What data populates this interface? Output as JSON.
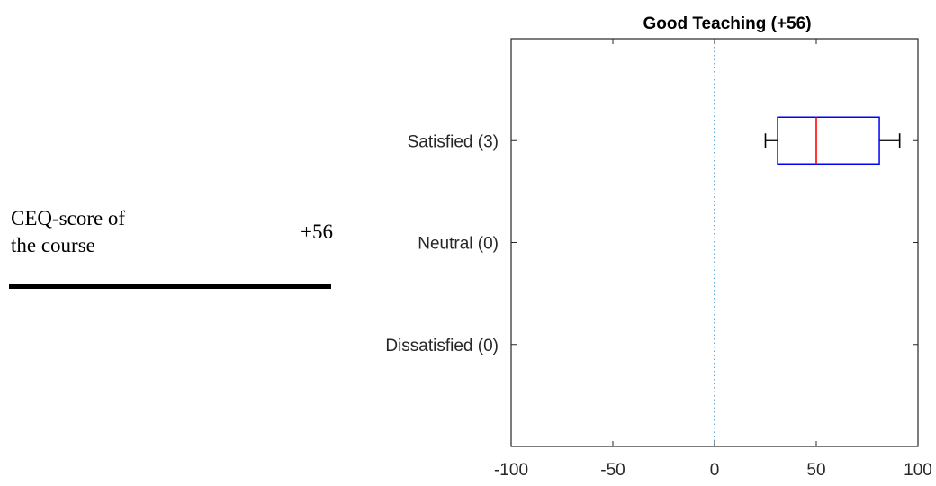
{
  "summary": {
    "label": "CEQ-score of\nthe course",
    "value": "+56"
  },
  "chart_data": {
    "type": "boxplot",
    "title": "Good Teaching (+56)",
    "orientation": "horizontal",
    "categories": [
      "Satisfied (3)",
      "Neutral (0)",
      "Dissatisfied (0)"
    ],
    "xlim": [
      -100,
      100
    ],
    "xticks": [
      -100,
      -50,
      0,
      50,
      100
    ],
    "xtick_labels": [
      "-100",
      "-50",
      "0",
      "50",
      "100"
    ],
    "reference_line_x": 0,
    "boxes": [
      {
        "category": "Satisfied (3)",
        "whisker_low": 25,
        "q1": 31,
        "median": 50,
        "q3": 81,
        "whisker_high": 91
      }
    ],
    "colors": {
      "box": "#0000ff",
      "median": "#ff0000",
      "whisker": "#000000",
      "reference": "#0072bd",
      "axis": "#262626"
    }
  }
}
